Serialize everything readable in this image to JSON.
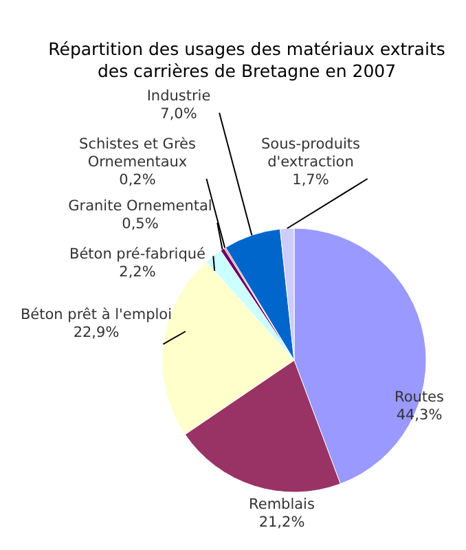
{
  "chart_data": {
    "type": "pie",
    "title": "Répartition des usages des matériaux extraits des carrières de Bretagne en 2007",
    "categories": [
      "Routes",
      "Remblais",
      "Béton prêt à l'emploi",
      "Béton pré-fabriqué",
      "Granite Ornemental",
      "Schistes et Grès Ornementaux",
      "Industrie",
      "Sous-produits d'extraction"
    ],
    "values": [
      44.3,
      21.2,
      22.9,
      2.2,
      0.5,
      0.2,
      7.0,
      1.7
    ],
    "colors": [
      "#9999ff",
      "#993366",
      "#ffffcc",
      "#ccffff",
      "#660066",
      "#ff8080",
      "#0066cc",
      "#ccccff"
    ],
    "value_labels": [
      "44,3%",
      "21,2%",
      "22,9%",
      "2,2%",
      "0,5%",
      "0,2%",
      "7,0%",
      "1,7%"
    ]
  }
}
